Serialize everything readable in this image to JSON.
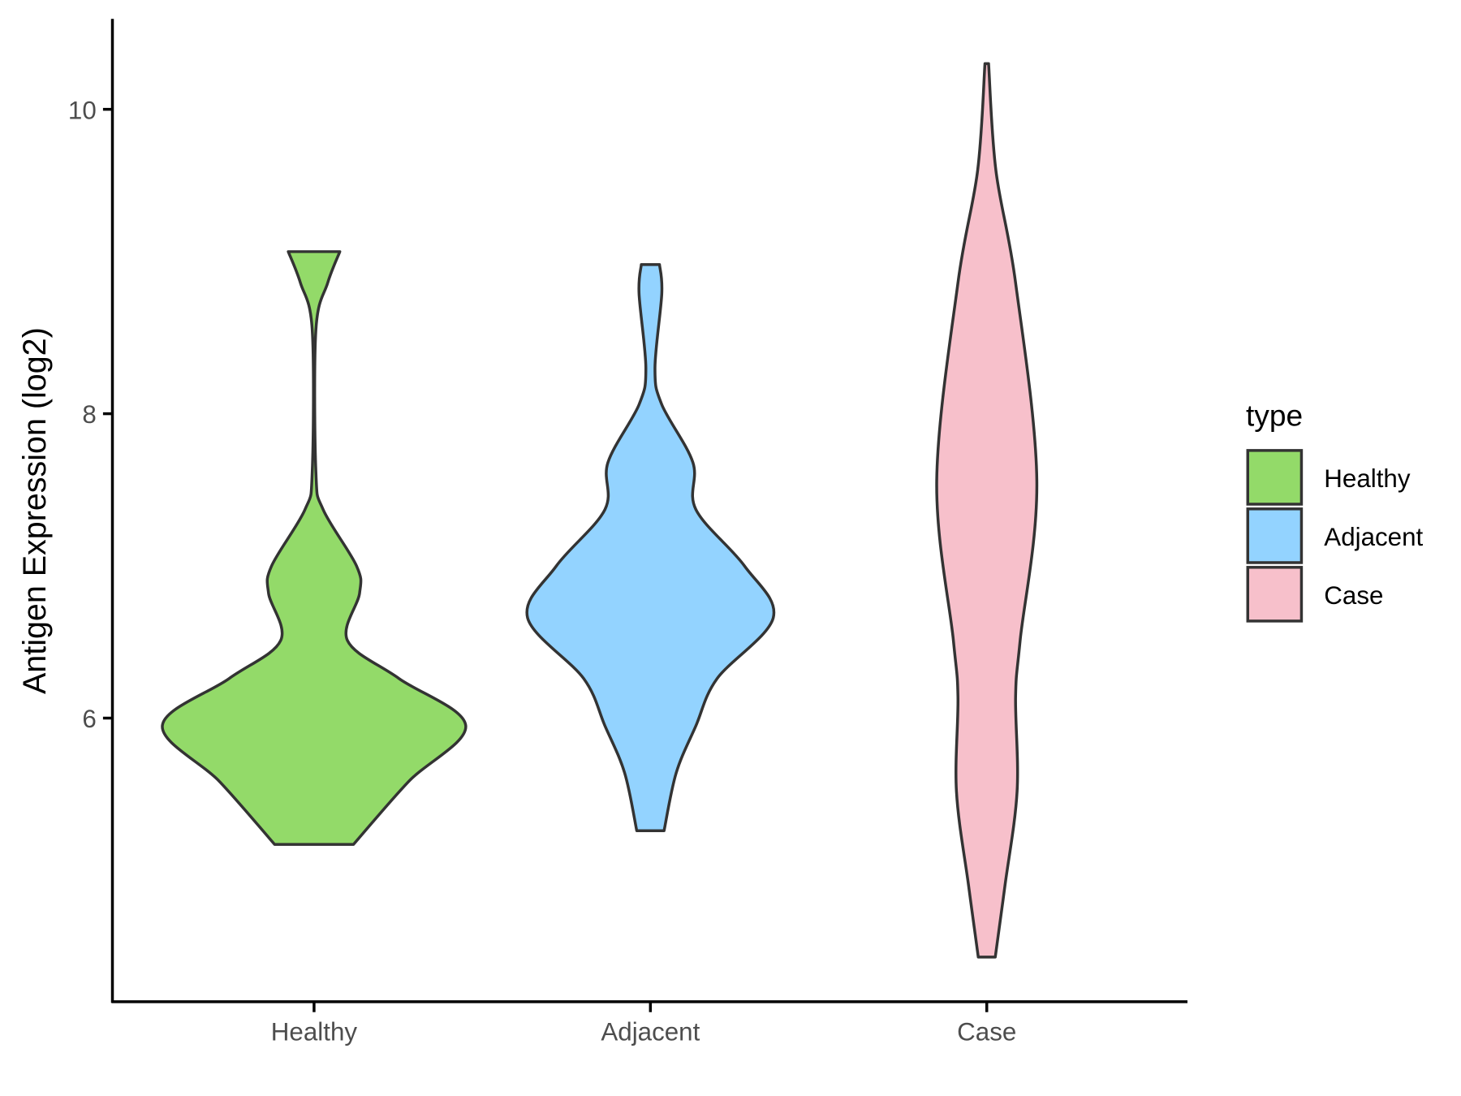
{
  "chart_data": {
    "type": "violin",
    "title": "",
    "xlabel": "",
    "ylabel": "Antigen Expression (log2)",
    "categories": [
      "Healthy",
      "Adjacent",
      "Case"
    ],
    "yticks": [
      6,
      8,
      10
    ],
    "ylim": [
      4.15,
      10.6
    ],
    "legend": {
      "title": "type",
      "placement": "right",
      "entries": [
        "Healthy",
        "Adjacent",
        "Case"
      ]
    },
    "colors": {
      "Healthy": "#93DA69",
      "Adjacent": "#93D3FF",
      "Case": "#F7C0CB",
      "outline": "#333333"
    },
    "series": [
      {
        "name": "Healthy",
        "range": [
          5.17,
          9.065
        ],
        "density_profile": [
          [
            9.065,
            0.17
          ],
          [
            8.86,
            0.09
          ],
          [
            8.55,
            0.012
          ],
          [
            7.62,
            0.012
          ],
          [
            7.37,
            0.06
          ],
          [
            7.0,
            0.28
          ],
          [
            6.82,
            0.3
          ],
          [
            6.51,
            0.22
          ],
          [
            6.26,
            0.56
          ],
          [
            5.95,
            1.0
          ],
          [
            5.58,
            0.62
          ],
          [
            5.17,
            0.26
          ]
        ]
      },
      {
        "name": "Adjacent",
        "range": [
          5.26,
          8.98
        ],
        "density_profile": [
          [
            8.98,
            0.06
          ],
          [
            8.79,
            0.075
          ],
          [
            8.3,
            0.03
          ],
          [
            8.06,
            0.075
          ],
          [
            7.68,
            0.28
          ],
          [
            7.37,
            0.3
          ],
          [
            7.0,
            0.62
          ],
          [
            6.66,
            0.81
          ],
          [
            6.26,
            0.44
          ],
          [
            5.95,
            0.3
          ],
          [
            5.64,
            0.17
          ],
          [
            5.26,
            0.09
          ]
        ]
      },
      {
        "name": "Case",
        "range": [
          4.43,
          10.3
        ],
        "density_profile": [
          [
            10.3,
            0.012
          ],
          [
            9.6,
            0.06
          ],
          [
            8.86,
            0.19
          ],
          [
            7.56,
            0.33
          ],
          [
            6.51,
            0.22
          ],
          [
            6.14,
            0.19
          ],
          [
            5.52,
            0.2
          ],
          [
            4.9,
            0.12
          ],
          [
            4.43,
            0.056
          ]
        ]
      }
    ]
  }
}
